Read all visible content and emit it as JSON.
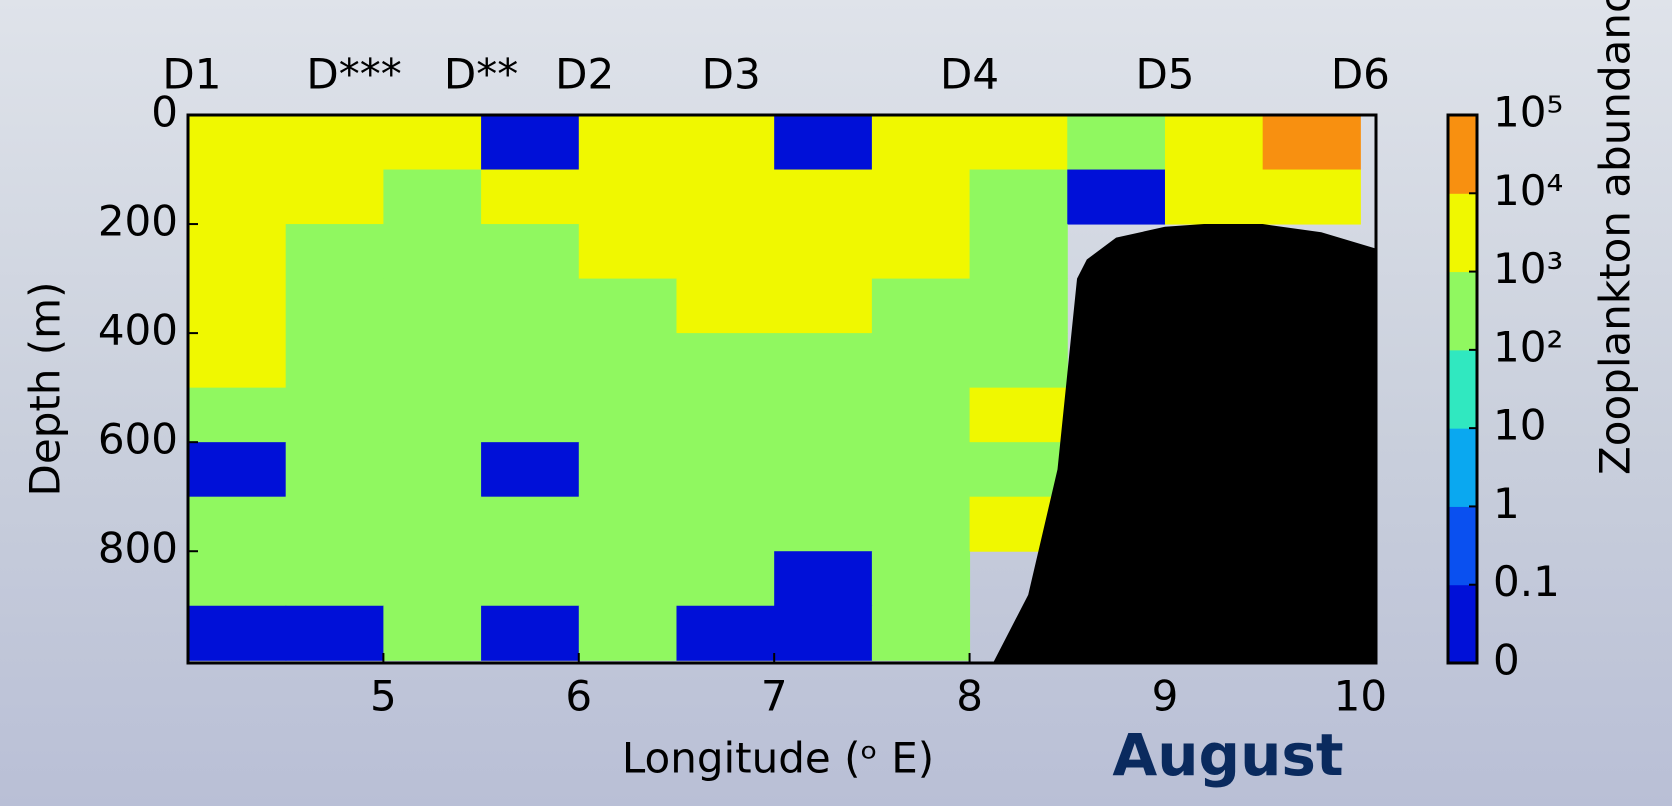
{
  "chart_data": {
    "type": "section",
    "xlabel": "Longitude (ᵒ E)",
    "ylabel": "Depth (m)",
    "annotation": "August",
    "xlim": [
      4,
      10.08
    ],
    "xticks": [
      5,
      6,
      7,
      8,
      9,
      10
    ],
    "ylim": [
      0,
      1005
    ],
    "yticks": [
      0,
      200,
      400,
      600,
      800
    ],
    "stations": {
      "labels": [
        "D1",
        "D***",
        "D**",
        "D2",
        "D3",
        "D4",
        "D5",
        "D6"
      ],
      "x": [
        4.02,
        4.85,
        5.5,
        6.03,
        6.78,
        8.0,
        9.0,
        10.0
      ]
    },
    "colorbar": {
      "label": "Zooplankton abundance",
      "ticks": [
        {
          "value": 0,
          "label": "0"
        },
        0.1,
        1,
        10,
        {
          "value": 100,
          "label": "10²"
        },
        {
          "value": 1000,
          "label": "10³"
        },
        {
          "value": 10000,
          "label": "10⁴"
        },
        {
          "value": 100000,
          "label": "10⁵"
        }
      ],
      "colors": [
        "#0010d8",
        "#0a50f0",
        "#0aa8f0",
        "#30e8c0",
        "#90f860",
        "#f0f800",
        "#f89010"
      ]
    },
    "grid_x": [
      4.25,
      4.75,
      5.25,
      5.75,
      6.25,
      6.75,
      7.25,
      7.75,
      8.25,
      8.75,
      9.25,
      9.75
    ],
    "grid_depth": [
      50,
      150,
      250,
      350,
      450,
      550,
      650,
      750,
      850,
      950
    ],
    "values": [
      [
        3000,
        3000,
        3000,
        0.05,
        3000,
        3000,
        0.05,
        3000,
        3000,
        300,
        3000,
        30000
      ],
      [
        3000,
        3000,
        300,
        3000,
        3000,
        3000,
        3000,
        3000,
        300,
        0.05,
        3000,
        3000
      ],
      [
        3000,
        300,
        300,
        300,
        3000,
        3000,
        3000,
        3000,
        300,
        null,
        null,
        null
      ],
      [
        3000,
        300,
        300,
        300,
        300,
        3000,
        3000,
        300,
        300,
        null,
        null,
        null
      ],
      [
        3000,
        300,
        300,
        300,
        300,
        300,
        300,
        300,
        300,
        null,
        null,
        null
      ],
      [
        300,
        300,
        300,
        300,
        300,
        300,
        300,
        300,
        3000,
        null,
        null,
        null
      ],
      [
        0.05,
        300,
        300,
        0.05,
        300,
        300,
        300,
        300,
        300,
        null,
        null,
        null
      ],
      [
        300,
        300,
        300,
        300,
        300,
        300,
        300,
        300,
        3000,
        null,
        null,
        null
      ],
      [
        300,
        300,
        300,
        300,
        300,
        300,
        0.05,
        300,
        null,
        null,
        null,
        null
      ],
      [
        0.05,
        0.05,
        300,
        0.05,
        300,
        0.05,
        0.05,
        300,
        null,
        null,
        null,
        null
      ]
    ],
    "seafloor": {
      "x": [
        8.12,
        8.3,
        8.45,
        8.55,
        8.6,
        8.75,
        9.0,
        9.2,
        9.5,
        9.8,
        10.08
      ],
      "depth": [
        1005,
        880,
        650,
        300,
        265,
        225,
        205,
        200,
        200,
        215,
        245
      ]
    }
  }
}
